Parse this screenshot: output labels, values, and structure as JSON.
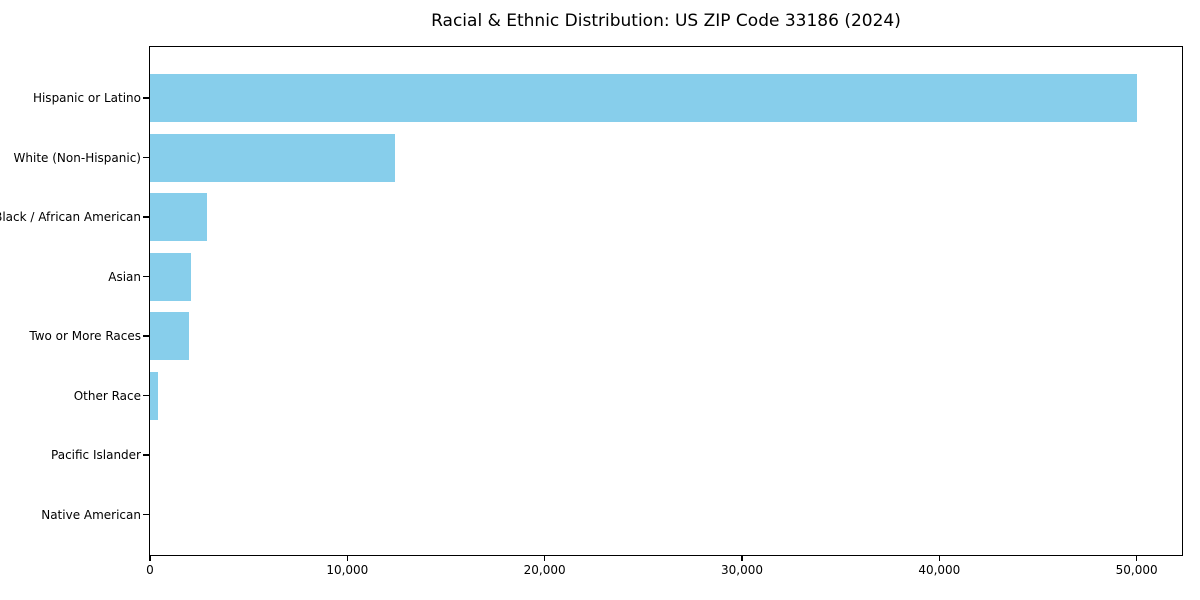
{
  "title": "Racial & Ethnic Distribution: US ZIP Code 33186 (2024)",
  "chart_data": {
    "type": "bar",
    "orientation": "horizontal",
    "title": "Racial & Ethnic Distribution: US ZIP Code 33186 (2024)",
    "xlabel": "",
    "ylabel": "",
    "categories": [
      "Hispanic or Latino",
      "White (Non-Hispanic)",
      "Black / African American",
      "Asian",
      "Two or More Races",
      "Other Race",
      "Pacific Islander",
      "Native American"
    ],
    "values": [
      50000,
      12400,
      2900,
      2100,
      2000,
      400,
      0,
      0
    ],
    "xlim": [
      0,
      52400
    ],
    "x_ticks": [
      0,
      10000,
      20000,
      30000,
      40000,
      50000
    ],
    "x_tick_labels": [
      "0",
      "10,000",
      "20,000",
      "30,000",
      "40,000",
      "50,000"
    ],
    "bar_color": "#87CEEB",
    "grid": false,
    "legend": null
  }
}
